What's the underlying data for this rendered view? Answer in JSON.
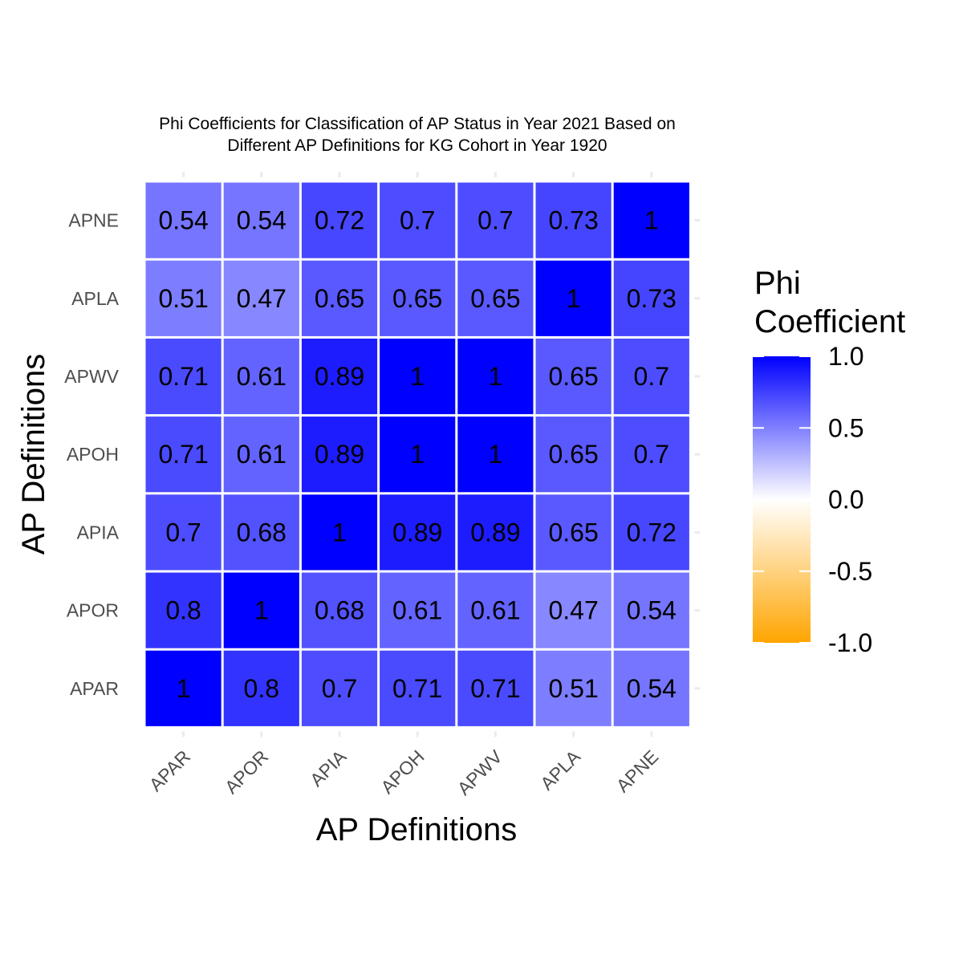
{
  "chart_data": {
    "type": "heatmap",
    "title": [
      "Phi Coefficients for Classification of AP Status in Year 2021 Based on",
      "Different AP Definitions for KG Cohort in Year 1920"
    ],
    "xlabel": "AP Definitions",
    "ylabel": "AP Definitions",
    "x_categories": [
      "APAR",
      "APOR",
      "APIA",
      "APOH",
      "APWV",
      "APLA",
      "APNE"
    ],
    "y_categories": [
      "APAR",
      "APOR",
      "APIA",
      "APOH",
      "APWV",
      "APLA",
      "APNE"
    ],
    "values": [
      [
        1,
        0.8,
        0.7,
        0.71,
        0.71,
        0.51,
        0.54
      ],
      [
        0.8,
        1,
        0.68,
        0.61,
        0.61,
        0.47,
        0.54
      ],
      [
        0.7,
        0.68,
        1,
        0.89,
        0.89,
        0.65,
        0.72
      ],
      [
        0.71,
        0.61,
        0.89,
        1,
        1,
        0.65,
        0.7
      ],
      [
        0.71,
        0.61,
        0.89,
        1,
        1,
        0.65,
        0.7
      ],
      [
        0.51,
        0.47,
        0.65,
        0.65,
        0.65,
        1,
        0.73
      ],
      [
        0.54,
        0.54,
        0.72,
        0.7,
        0.7,
        0.73,
        1
      ]
    ],
    "legend": {
      "title": [
        "Phi",
        "Coefficient"
      ],
      "ticks": [
        "1.0",
        "0.5",
        "0.0",
        "-0.5",
        "-1.0"
      ],
      "range": [
        -1,
        1
      ],
      "placement": "right"
    },
    "colors": {
      "low": "#FFA500",
      "mid": "#FFFFFF",
      "high": "#0000FF"
    },
    "grid": false
  }
}
